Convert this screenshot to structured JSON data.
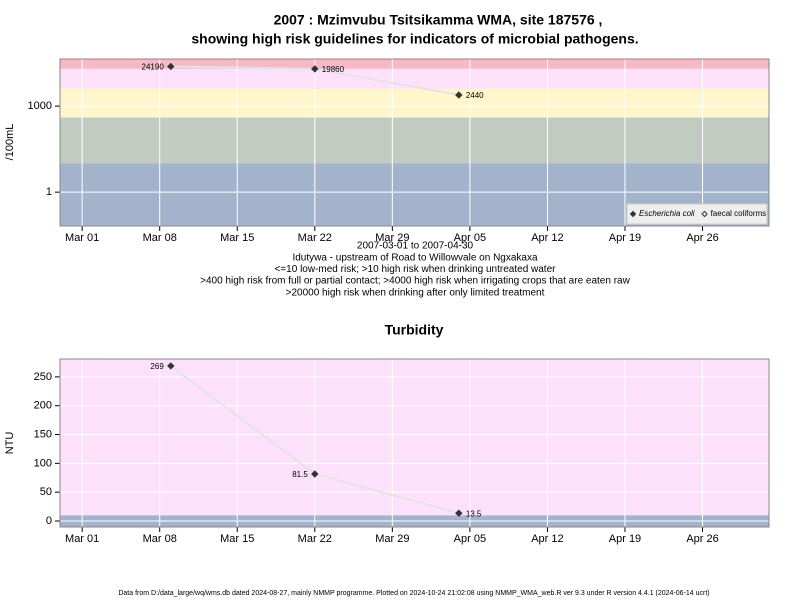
{
  "chart_data": [
    {
      "type": "line",
      "title": "2007 : Mzimvubu Tsitsikamma WMA, site 187576 ,",
      "subtitle": "showing high risk guidelines for indicators of microbial pathogens.",
      "ylabel": "/100mL",
      "log_scale": true,
      "xlim": [
        "2007-02-27",
        "2007-05-02"
      ],
      "ylim": [
        0.066,
        44000
      ],
      "xticks": [
        {
          "value": "2007-03-01",
          "label": "Mar 01"
        },
        {
          "value": "2007-03-08",
          "label": "Mar 08"
        },
        {
          "value": "2007-03-15",
          "label": "Mar 15"
        },
        {
          "value": "2007-03-22",
          "label": "Mar 22"
        },
        {
          "value": "2007-03-29",
          "label": "Mar 29"
        },
        {
          "value": "2007-04-05",
          "label": "Apr 05"
        },
        {
          "value": "2007-04-12",
          "label": "Apr 12"
        },
        {
          "value": "2007-04-19",
          "label": "Apr 19"
        },
        {
          "value": "2007-04-26",
          "label": "Apr 26"
        }
      ],
      "yticks": [
        1,
        1000
      ],
      "grid": true,
      "band_thresholds": [
        10,
        400,
        4000,
        20000
      ],
      "band_colors": [
        "#a3b3cc",
        "#c2cbc2",
        "#fff6cc",
        "#fde0fa",
        "#f8b8c6"
      ],
      "x": [
        "2007-03-09",
        "2007-03-22",
        "2007-04-04"
      ],
      "series": [
        {
          "name": "Escherichia coli",
          "color": "#333333",
          "values": [
            24190,
            19860,
            2440
          ]
        },
        {
          "name": "faecal coliforms",
          "color": "#333333",
          "values": [
            null,
            null,
            null
          ]
        }
      ],
      "legend": "bottom-right",
      "notes": [
        "2007-03-01 to 2007-04-30",
        "Idutywa - upstream of Road to Willowvale on Ngxakaxa",
        "<=10 low-med risk; >10 high risk when drinking untreated water",
        ">400 high risk from full or partial contact; >4000 high risk when irrigating crops that are eaten raw",
        ">20000 high risk when drinking after only limited treatment"
      ]
    },
    {
      "type": "line",
      "title": "Turbidity",
      "ylabel": "NTU",
      "log_scale": false,
      "xlim": [
        "2007-02-27",
        "2007-05-02"
      ],
      "ylim": [
        -10.4,
        281
      ],
      "xticks": [
        {
          "value": "2007-03-01",
          "label": "Mar 01"
        },
        {
          "value": "2007-03-08",
          "label": "Mar 08"
        },
        {
          "value": "2007-03-15",
          "label": "Mar 15"
        },
        {
          "value": "2007-03-22",
          "label": "Mar 22"
        },
        {
          "value": "2007-03-29",
          "label": "Mar 29"
        },
        {
          "value": "2007-04-05",
          "label": "Apr 05"
        },
        {
          "value": "2007-04-12",
          "label": "Apr 12"
        },
        {
          "value": "2007-04-19",
          "label": "Apr 19"
        },
        {
          "value": "2007-04-26",
          "label": "Apr 26"
        }
      ],
      "yticks": [
        0,
        50,
        100,
        150,
        200,
        250
      ],
      "grid": true,
      "band_thresholds": [
        10
      ],
      "band_colors": [
        "#a3b3cc",
        "#fde0fa"
      ],
      "x": [
        "2007-03-09",
        "2007-03-22",
        "2007-04-04"
      ],
      "series": [
        {
          "name": "Turbidity",
          "color": "#333333",
          "values": [
            269,
            81.5,
            13.5
          ]
        }
      ]
    }
  ],
  "footer": "Data from D:/data_large/wq/wms.db dated 2024-08-27, mainly NMMP programme. Plotted on 2024-10-24 21:02:08 using NMMP_WMA_web.R ver 9.3 under R version 4.4.1 (2024-06-14 ucrt)"
}
